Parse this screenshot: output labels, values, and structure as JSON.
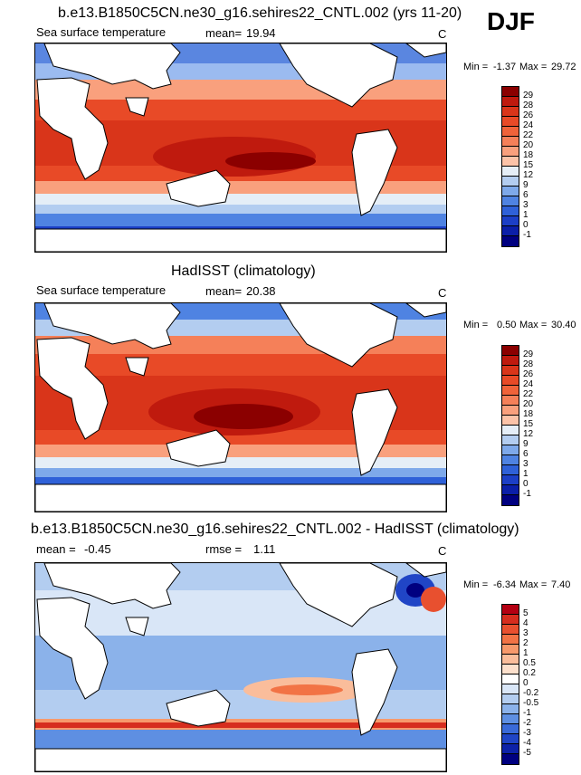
{
  "season": "DJF",
  "panels": [
    {
      "title": "b.e13.B1850C5CN.ne30_g16.sehires22_CNTL.002 (yrs 11-20)",
      "variable": "Sea surface temperature",
      "stat_label": "mean=",
      "stat_value": "19.94",
      "units": "C",
      "minmax_label": "Min =",
      "min": "-1.37",
      "max_label": "Max =",
      "max": "29.72",
      "colorbar": {
        "labels": [
          "29",
          "28",
          "26",
          "24",
          "22",
          "20",
          "18",
          "15",
          "12",
          "9",
          "6",
          "3",
          "1",
          "0",
          "-1"
        ],
        "colors": [
          "#8b0000",
          "#bf1a0e",
          "#d9351a",
          "#e84a27",
          "#f0633a",
          "#f58059",
          "#f9a07d",
          "#fcc3a8",
          "#e5eef7",
          "#b3cdf0",
          "#7ea9ea",
          "#4f83e2",
          "#2f61d8",
          "#1c3fc6",
          "#0b1fa8",
          "#000080"
        ]
      }
    },
    {
      "title": "HadISST (climatology)",
      "variable": "Sea surface temperature",
      "stat_label": "mean=",
      "stat_value": "20.38",
      "units": "C",
      "minmax_label": "Min =",
      "min": "0.50",
      "max_label": "Max =",
      "max": "30.40",
      "colorbar": {
        "labels": [
          "29",
          "28",
          "26",
          "24",
          "22",
          "20",
          "18",
          "15",
          "12",
          "9",
          "6",
          "3",
          "1",
          "0",
          "-1"
        ],
        "colors": [
          "#8b0000",
          "#bf1a0e",
          "#d9351a",
          "#e84a27",
          "#f0633a",
          "#f58059",
          "#f9a07d",
          "#fcc3a8",
          "#e5eef7",
          "#b3cdf0",
          "#7ea9ea",
          "#4f83e2",
          "#2f61d8",
          "#1c3fc6",
          "#0b1fa8",
          "#000080"
        ]
      }
    },
    {
      "title": "b.e13.B1850C5CN.ne30_g16.sehires22_CNTL.002 - HadISST (climatology)",
      "variable": "",
      "stat_label": "mean =",
      "stat_value": "-0.45",
      "stat2_label": "rmse =",
      "stat2_value": "1.11",
      "units": "C",
      "minmax_label": "Min =",
      "min": "-6.34",
      "max_label": "Max =",
      "max": "7.40",
      "colorbar": {
        "labels": [
          "5",
          "4",
          "3",
          "2",
          "1",
          "0.5",
          "0.2",
          "0",
          "-0.2",
          "-0.5",
          "-1",
          "-2",
          "-3",
          "-4",
          "-5"
        ],
        "colors": [
          "#b40012",
          "#d62d1e",
          "#e8502f",
          "#f27345",
          "#f7996b",
          "#fabd9b",
          "#fde0cc",
          "#ffffff",
          "#d9e6f7",
          "#b3cdf0",
          "#8bb2ea",
          "#5e8fe2",
          "#3a6ad8",
          "#2045c6",
          "#0d22a8",
          "#000080"
        ]
      }
    }
  ],
  "map_colors": {
    "land": "#ffffff",
    "coast": "#000000"
  }
}
